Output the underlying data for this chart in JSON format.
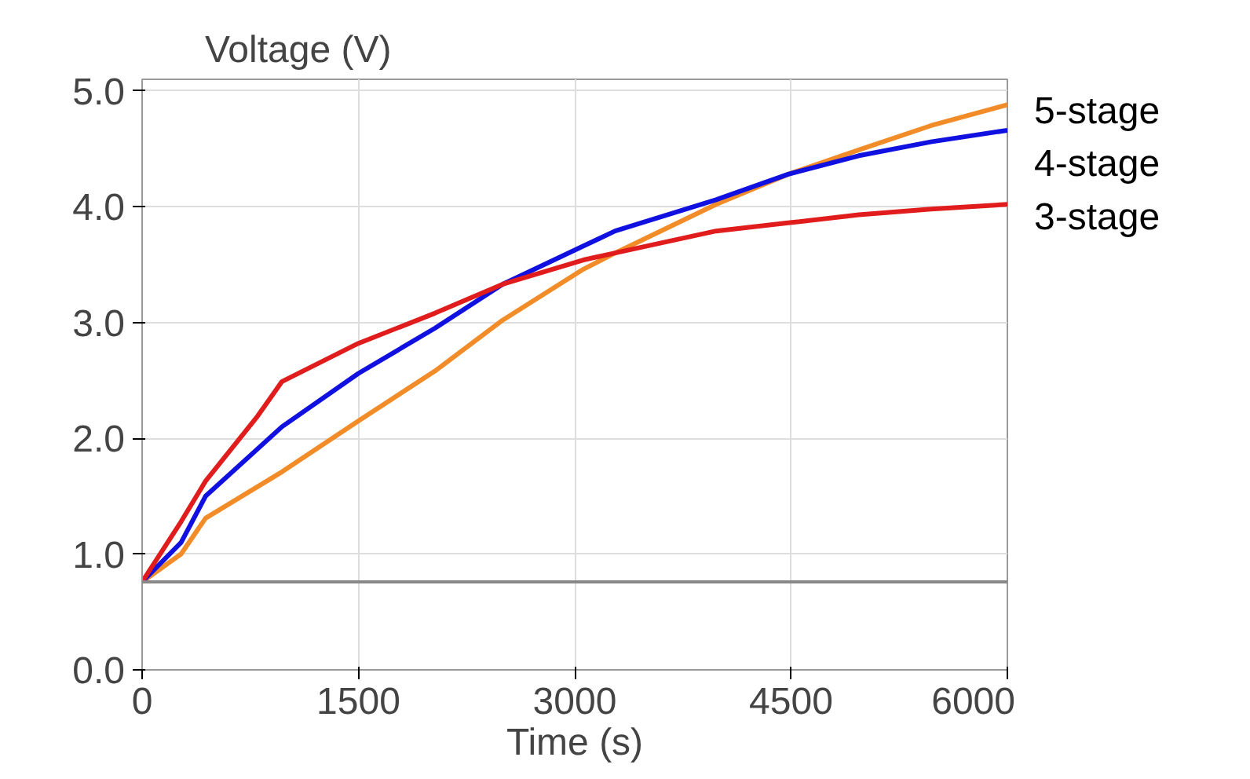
{
  "chart_data": {
    "type": "line",
    "title": "Voltage (V)",
    "xlabel": "Time (s)",
    "xlim": [
      0,
      6000
    ],
    "ylim": [
      0,
      5.1
    ],
    "xticks": [
      0,
      1500,
      3000,
      4500,
      6000
    ],
    "yticks": [
      {
        "value": 0,
        "label": "0.0"
      },
      {
        "value": 1,
        "label": "1.0"
      },
      {
        "value": 2,
        "label": "2.0"
      },
      {
        "value": 3,
        "label": "3.0"
      },
      {
        "value": 4,
        "label": "4.0"
      },
      {
        "value": 5,
        "label": "5.0"
      }
    ],
    "grid": true,
    "marker": "none",
    "line_style": "solid",
    "ref_lines": [
      {
        "axis": "y",
        "value": 0.76,
        "color": "#888888"
      }
    ],
    "x": [
      0,
      270,
      440,
      800,
      970,
      1500,
      2030,
      2500,
      3060,
      3280,
      3980,
      4480,
      4970,
      5470,
      6000
    ],
    "series": [
      {
        "name": "5-stage",
        "color": "#f28c28",
        "values": [
          0.76,
          1.0,
          1.31,
          null,
          1.71,
          2.15,
          2.58,
          3.02,
          3.46,
          3.6,
          4.02,
          4.28,
          4.49,
          4.7,
          4.88
        ]
      },
      {
        "name": "4-stage",
        "color": "#1010e0",
        "values": [
          0.76,
          1.1,
          1.5,
          null,
          2.1,
          2.56,
          2.95,
          3.33,
          3.66,
          3.79,
          4.06,
          4.28,
          4.44,
          4.56,
          4.66
        ]
      },
      {
        "name": "3-stage",
        "color": "#e01c1c",
        "values": [
          0.76,
          1.28,
          1.63,
          2.19,
          2.49,
          2.82,
          3.08,
          3.33,
          3.54,
          3.6,
          3.79,
          3.86,
          3.93,
          3.98,
          4.02
        ]
      }
    ]
  }
}
